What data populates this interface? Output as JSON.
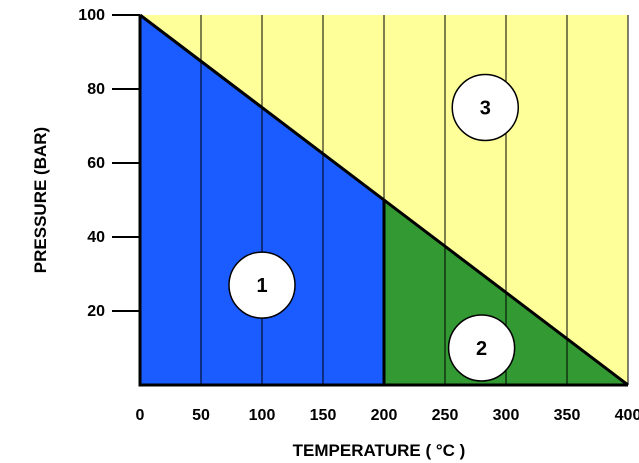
{
  "chart_data": {
    "type": "area",
    "xlabel": "TEMPERATURE ( °C )",
    "ylabel": "PRESSURE (BAR)",
    "xlim": [
      0,
      400
    ],
    "ylim": [
      0,
      100
    ],
    "x_ticks": [
      0,
      50,
      100,
      150,
      200,
      250,
      300,
      350,
      400
    ],
    "x_tick_labels": [
      "0",
      "50",
      "100",
      "150",
      "200",
      "250",
      "300",
      "350",
      "400"
    ],
    "y_ticks": [
      20,
      40,
      60,
      80,
      100
    ],
    "y_tick_labels": [
      "20",
      "40",
      "60",
      "80",
      "100"
    ],
    "vertical_gridlines_at": [
      50,
      100,
      150,
      200,
      250,
      300,
      350
    ],
    "grid": "vertical lines only",
    "boundary_line": {
      "from": [
        0,
        100
      ],
      "to": [
        400,
        0
      ]
    },
    "divider_line": {
      "x": 200,
      "from_y": 0,
      "to_y": 50
    },
    "regions": [
      {
        "label": "1",
        "color": "#1a5cff",
        "polygon": [
          [
            0,
            0
          ],
          [
            0,
            100
          ],
          [
            200,
            50
          ],
          [
            200,
            0
          ]
        ],
        "marker_at": [
          100,
          27
        ]
      },
      {
        "label": "2",
        "color": "#339933",
        "polygon": [
          [
            200,
            0
          ],
          [
            200,
            50
          ],
          [
            400,
            0
          ]
        ],
        "marker_at": [
          280,
          10
        ]
      },
      {
        "label": "3",
        "color": "#ffff99",
        "polygon": [
          [
            0,
            100
          ],
          [
            400,
            100
          ],
          [
            400,
            0
          ]
        ],
        "marker_at": [
          283,
          75
        ]
      }
    ]
  }
}
